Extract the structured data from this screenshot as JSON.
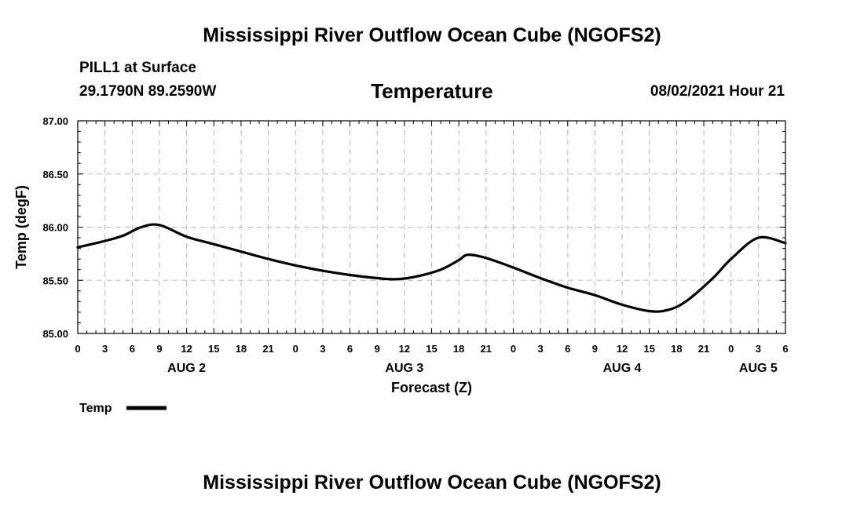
{
  "header": {
    "title": "Mississippi River Outflow Ocean Cube (NGOFS2)",
    "station": "PILL1 at Surface",
    "coords": "29.1790N  89.2590W",
    "datetime": "08/02/2021 Hour 21"
  },
  "footer": {
    "title": "Mississippi River Outflow Ocean Cube (NGOFS2)"
  },
  "chart_data": {
    "type": "line",
    "title": "Temperature",
    "xlabel": "Forecast (Z)",
    "ylabel": "Temp (degF)",
    "ylim": [
      85.0,
      87.0
    ],
    "xlim_hours": [
      0,
      78
    ],
    "y_ticks": [
      "85.00",
      "85.50",
      "86.00",
      "86.50",
      "87.00"
    ],
    "x_tick_labels": [
      "0",
      "3",
      "6",
      "9",
      "12",
      "15",
      "18",
      "21",
      "0",
      "3",
      "6",
      "9",
      "12",
      "15",
      "18",
      "21",
      "0",
      "3",
      "6",
      "9",
      "12",
      "15",
      "18",
      "21",
      "0",
      "3",
      "6"
    ],
    "day_labels": [
      {
        "label": "AUG 2",
        "hour": 12
      },
      {
        "label": "AUG 3",
        "hour": 36
      },
      {
        "label": "AUG 4",
        "hour": 60
      },
      {
        "label": "AUG 5",
        "hour": 75
      }
    ],
    "grid": true,
    "legend": "bottom-left",
    "series": [
      {
        "name": "Temp",
        "color": "#000000",
        "x_hours": [
          0,
          3,
          5,
          7,
          9,
          12,
          15,
          18,
          21,
          24,
          27,
          30,
          33,
          35,
          37,
          40,
          42,
          43,
          45,
          48,
          51,
          54,
          57,
          60,
          63,
          65,
          67,
          70,
          72,
          75,
          78
        ],
        "values": [
          85.81,
          85.87,
          85.92,
          86.0,
          86.02,
          85.91,
          85.84,
          85.77,
          85.7,
          85.64,
          85.59,
          85.55,
          85.52,
          85.51,
          85.53,
          85.6,
          85.69,
          85.74,
          85.71,
          85.62,
          85.52,
          85.43,
          85.36,
          85.27,
          85.21,
          85.22,
          85.3,
          85.52,
          85.7,
          85.9,
          85.85
        ]
      }
    ]
  }
}
